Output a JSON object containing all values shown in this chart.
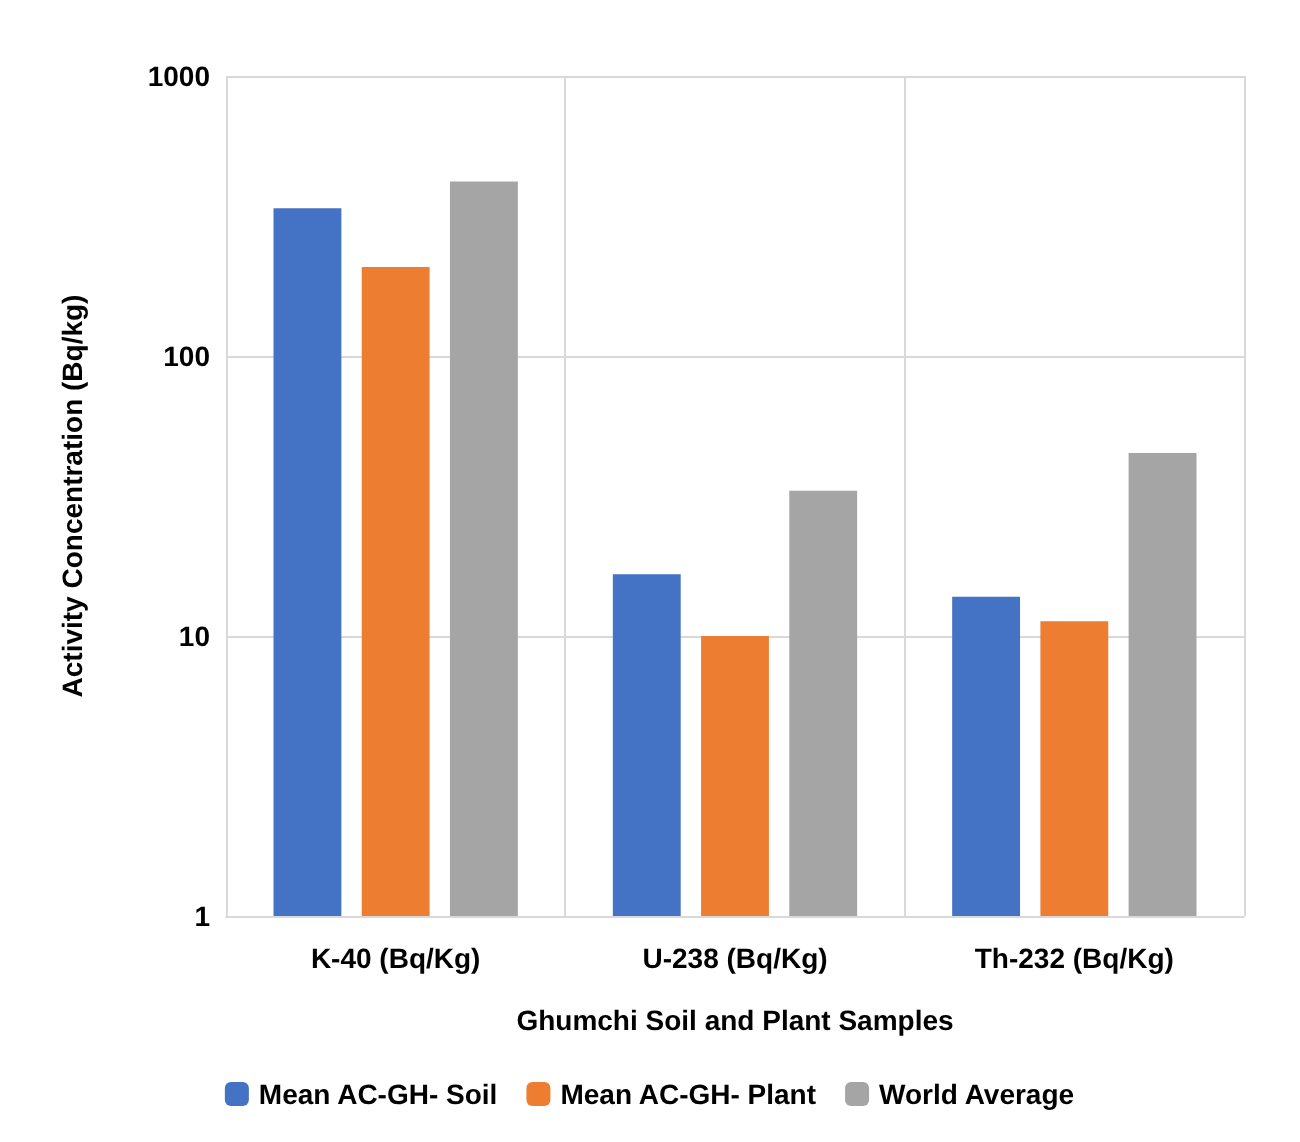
{
  "chart_data": {
    "type": "bar",
    "xlabel": "Ghumchi Soil and Plant Samples",
    "ylabel": "Activity Concentration (Bq/kg)",
    "categories": [
      "K-40 (Bq/Kg)",
      "U-238 (Bq/Kg)",
      "Th-232 (Bq/Kg)"
    ],
    "series": [
      {
        "name": "Mean AC-GH- Soil",
        "color": "#4472c4",
        "values": [
          337,
          16.6,
          13.8
        ]
      },
      {
        "name": "Mean AC-GH- Plant",
        "color": "#ed7d31",
        "values": [
          208,
          10,
          11.3
        ]
      },
      {
        "name": "World Average",
        "color": "#a5a5a5",
        "values": [
          420,
          33,
          45
        ]
      }
    ],
    "log": "y",
    "ylim": [
      1,
      1000
    ],
    "yticks": [
      1,
      10,
      100,
      1000
    ],
    "grid": true,
    "legend": "bottom"
  }
}
